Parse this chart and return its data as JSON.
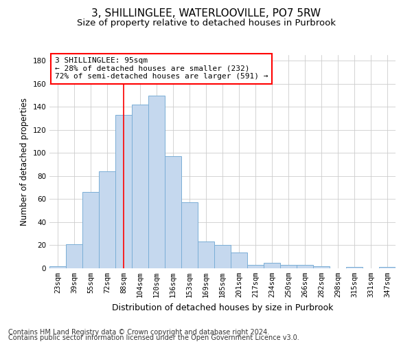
{
  "title1": "3, SHILLINGLEE, WATERLOOVILLE, PO7 5RW",
  "title2": "Size of property relative to detached houses in Purbrook",
  "xlabel": "Distribution of detached houses by size in Purbrook",
  "ylabel": "Number of detached properties",
  "bar_labels": [
    "23sqm",
    "39sqm",
    "55sqm",
    "72sqm",
    "88sqm",
    "104sqm",
    "120sqm",
    "136sqm",
    "153sqm",
    "169sqm",
    "185sqm",
    "201sqm",
    "217sqm",
    "234sqm",
    "250sqm",
    "266sqm",
    "282sqm",
    "298sqm",
    "315sqm",
    "331sqm",
    "347sqm"
  ],
  "bar_values": [
    2,
    21,
    66,
    84,
    133,
    142,
    150,
    97,
    57,
    23,
    20,
    14,
    3,
    5,
    3,
    3,
    2,
    0,
    1,
    0,
    1
  ],
  "bar_color": "#c5d8ee",
  "bar_edge_color": "#7aaed6",
  "red_line_x": 4.5,
  "annotation_text": "3 SHILLINGLEE: 95sqm\n← 28% of detached houses are smaller (232)\n72% of semi-detached houses are larger (591) →",
  "ylim": [
    0,
    185
  ],
  "yticks": [
    0,
    20,
    40,
    60,
    80,
    100,
    120,
    140,
    160,
    180
  ],
  "footer1": "Contains HM Land Registry data © Crown copyright and database right 2024.",
  "footer2": "Contains public sector information licensed under the Open Government Licence v3.0.",
  "background_color": "#ffffff",
  "grid_color": "#cccccc",
  "title1_fontsize": 11,
  "title2_fontsize": 9.5,
  "annotation_fontsize": 8,
  "tick_fontsize": 7.5,
  "ylabel_fontsize": 8.5,
  "xlabel_fontsize": 9,
  "footer_fontsize": 7
}
